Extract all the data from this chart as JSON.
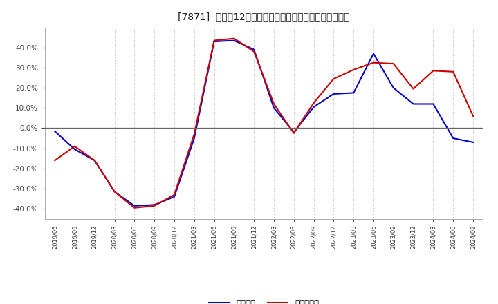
{
  "title": "[7871]  利益の12か月移動合計の対前年同期増減率の推移",
  "x_labels": [
    "2019/06",
    "2019/09",
    "2019/12",
    "2020/03",
    "2020/06",
    "2020/09",
    "2020/12",
    "2021/03",
    "2021/06",
    "2021/09",
    "2021/12",
    "2022/03",
    "2022/06",
    "2022/09",
    "2022/12",
    "2023/03",
    "2023/06",
    "2023/09",
    "2023/12",
    "2024/03",
    "2024/06",
    "2024/09"
  ],
  "keijo_rieki": [
    -1.5,
    -10.5,
    -16.0,
    -31.5,
    -38.5,
    -38.0,
    -34.0,
    -5.0,
    43.0,
    43.5,
    39.0,
    10.0,
    -2.0,
    10.5,
    17.0,
    17.5,
    37.0,
    20.0,
    12.0,
    12.0,
    -5.0,
    -7.0
  ],
  "toki_jun_rieki": [
    -16.0,
    -9.0,
    -16.0,
    -31.5,
    -39.5,
    -38.5,
    -33.0,
    -3.0,
    43.5,
    44.5,
    38.0,
    12.0,
    -2.5,
    12.5,
    24.5,
    29.0,
    32.5,
    32.0,
    19.5,
    28.5,
    28.0,
    6.0
  ],
  "keijo_color": "#0000cc",
  "toki_color": "#cc0000",
  "ylim": [
    -45,
    50
  ],
  "yticks": [
    -40,
    -30,
    -20,
    -10,
    0,
    10,
    20,
    30,
    40
  ],
  "background_color": "#ffffff",
  "plot_bg_color": "#ffffff",
  "grid_color": "#aaaaaa",
  "legend_keijo": "経常利益",
  "legend_toki": "当期純利益"
}
